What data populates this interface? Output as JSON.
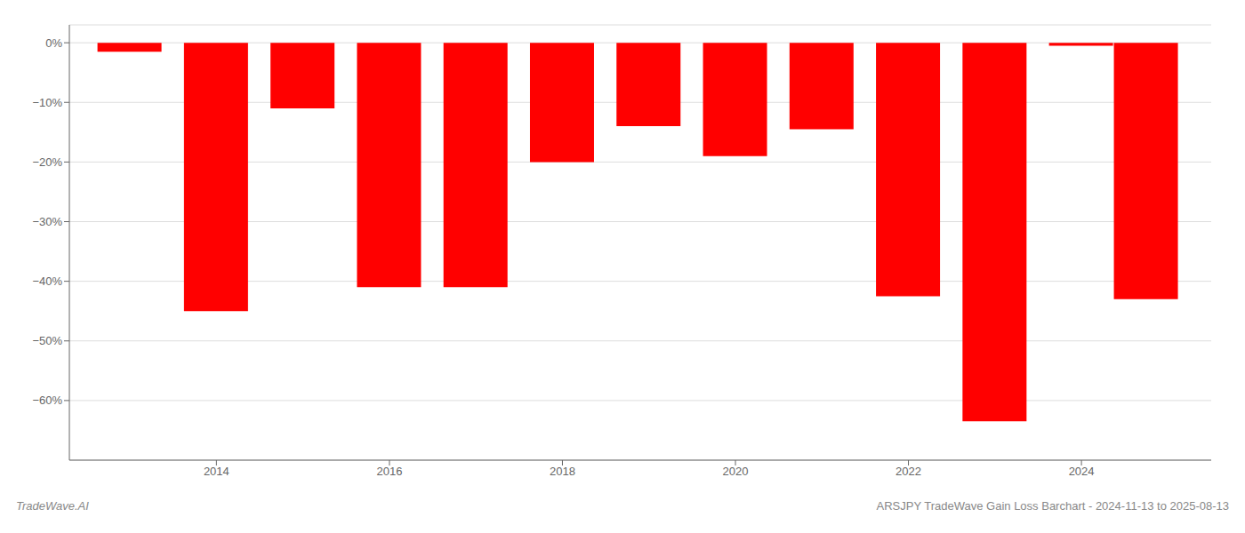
{
  "chart_data": {
    "type": "bar",
    "x": [
      2013.0,
      2014.0,
      2015.0,
      2016.0,
      2017.0,
      2018.0,
      2019.0,
      2020.0,
      2021.0,
      2022.0,
      2023.0,
      2024.0,
      2024.75
    ],
    "values": [
      -1.5,
      -45.0,
      -11.0,
      -41.0,
      -41.0,
      -20.0,
      -14.0,
      -19.0,
      -14.5,
      -42.5,
      -63.5,
      -0.5,
      -43.0
    ],
    "color": "#ff0000",
    "xlim": [
      2012.3,
      2025.5
    ],
    "xticks": [
      2014,
      2016,
      2018,
      2020,
      2022,
      2024
    ],
    "ylim": [
      -70,
      3
    ],
    "yticks": [
      {
        "value": 0,
        "label": "0%"
      },
      {
        "value": -10,
        "label": "−10%"
      },
      {
        "value": -20,
        "label": "−20%"
      },
      {
        "value": -30,
        "label": "−30%"
      },
      {
        "value": -40,
        "label": "−40%"
      },
      {
        "value": -50,
        "label": "−50%"
      },
      {
        "value": -60,
        "label": "−60%"
      }
    ],
    "grid": true,
    "annotations": [
      "TradeWave.AI",
      "ARSJPY TradeWave Gain Loss Barchart - 2024-11-13 to 2025-08-13"
    ]
  }
}
